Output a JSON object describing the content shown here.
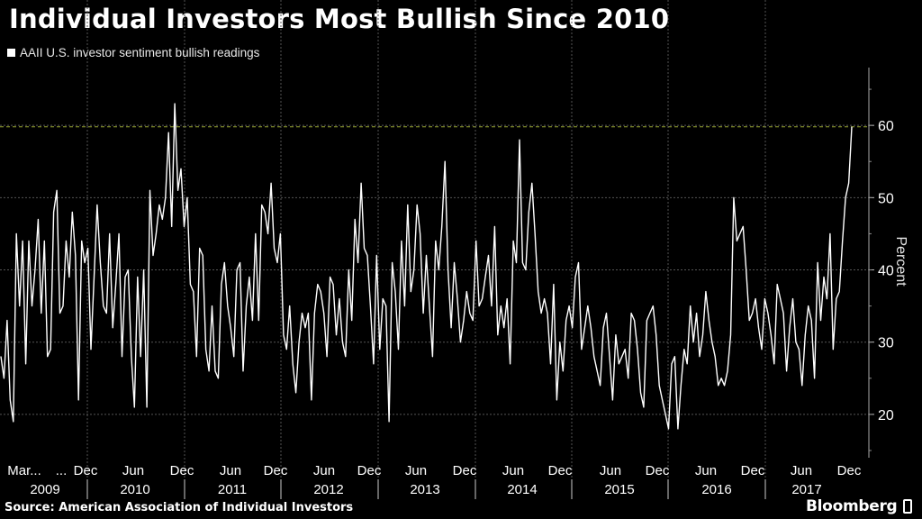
{
  "title": "Individual Investors Most Bullish Since 2010",
  "legend_label": "AAII U.S. investor sentiment bullish readings",
  "source": "Source: American Association of Individual Investors",
  "brand": "Bloomberg",
  "colors": {
    "background": "#000000",
    "line": "#ffffff",
    "grid": "#555555",
    "reference_line": "#9aa832"
  },
  "chart_data": {
    "type": "line",
    "title": "Individual Investors Most Bullish Since 2010",
    "ylabel": "Percent",
    "ylim": [
      14,
      68
    ],
    "yticks": [
      20,
      30,
      40,
      50,
      60
    ],
    "grid": true,
    "legend_position": "top-left",
    "reference_line": {
      "y": 59.8,
      "style": "dashed"
    },
    "x_month_labels": [
      "Mar...",
      "...",
      "Dec",
      "Jun",
      "Dec",
      "Jun",
      "Dec",
      "Jun",
      "Dec",
      "Jun",
      "Dec",
      "Jun",
      "Dec",
      "Jun",
      "Dec",
      "Jun",
      "Dec",
      "Jun",
      "Dec"
    ],
    "x_year_labels": [
      "2009",
      "2010",
      "2011",
      "2012",
      "2013",
      "2014",
      "2015",
      "2016",
      "2017"
    ],
    "series": [
      {
        "name": "AAII U.S. investor sentiment bullish readings",
        "x_start": "2009-03",
        "x_end": "2017-12",
        "values": [
          28,
          25,
          33,
          22,
          19,
          45,
          35,
          44,
          27,
          44,
          35,
          40,
          47,
          34,
          44,
          28,
          29,
          48,
          51,
          34,
          35,
          44,
          39,
          48,
          42,
          22,
          44,
          41,
          43,
          29,
          39,
          49,
          41,
          35,
          34,
          45,
          32,
          38,
          45,
          28,
          39,
          40,
          28,
          21,
          39,
          28,
          40,
          21,
          51,
          42,
          45,
          49,
          47,
          50,
          59,
          46,
          63,
          51,
          54,
          46,
          50,
          38,
          37,
          28,
          43,
          42,
          29,
          26,
          35,
          26,
          25,
          38,
          41,
          35,
          32,
          28,
          40,
          41,
          26,
          35,
          39,
          33,
          45,
          33,
          49,
          48,
          45,
          52,
          43,
          41,
          45,
          31,
          29,
          35,
          27,
          23,
          30,
          34,
          32,
          34,
          22,
          34,
          38,
          37,
          34,
          28,
          39,
          38,
          31,
          36,
          30,
          28,
          40,
          33,
          47,
          41,
          52,
          43,
          42,
          35,
          27,
          42,
          29,
          36,
          35,
          19,
          41,
          37,
          29,
          44,
          35,
          49,
          37,
          40,
          49,
          45,
          34,
          42,
          35,
          28,
          44,
          40,
          46,
          55,
          40,
          32,
          41,
          36,
          30,
          33,
          37,
          34,
          33,
          44,
          35,
          36,
          39,
          42,
          35,
          46,
          31,
          35,
          32,
          36,
          27,
          44,
          41,
          58,
          41,
          40,
          48,
          52,
          45,
          37,
          34,
          36,
          34,
          27,
          38,
          22,
          30,
          26,
          33,
          35,
          32,
          39,
          41,
          29,
          32,
          35,
          32,
          28,
          26,
          24,
          32,
          34,
          28,
          22,
          31,
          27,
          28,
          29,
          25,
          34,
          33,
          29,
          23,
          21,
          33,
          34,
          35,
          31,
          24,
          22,
          20,
          18,
          27,
          28,
          18,
          24,
          29,
          27,
          35,
          30,
          34,
          28,
          31,
          37,
          33,
          30,
          28,
          24,
          25,
          24,
          26,
          31,
          50,
          44,
          45,
          46,
          40,
          33,
          34,
          36,
          32,
          29,
          36,
          34,
          31,
          27,
          38,
          36,
          34,
          26,
          32,
          36,
          30,
          29,
          24,
          31,
          35,
          33,
          25,
          41,
          33,
          39,
          36,
          45,
          29,
          36,
          37,
          44,
          50,
          52,
          59.8
        ]
      }
    ]
  }
}
